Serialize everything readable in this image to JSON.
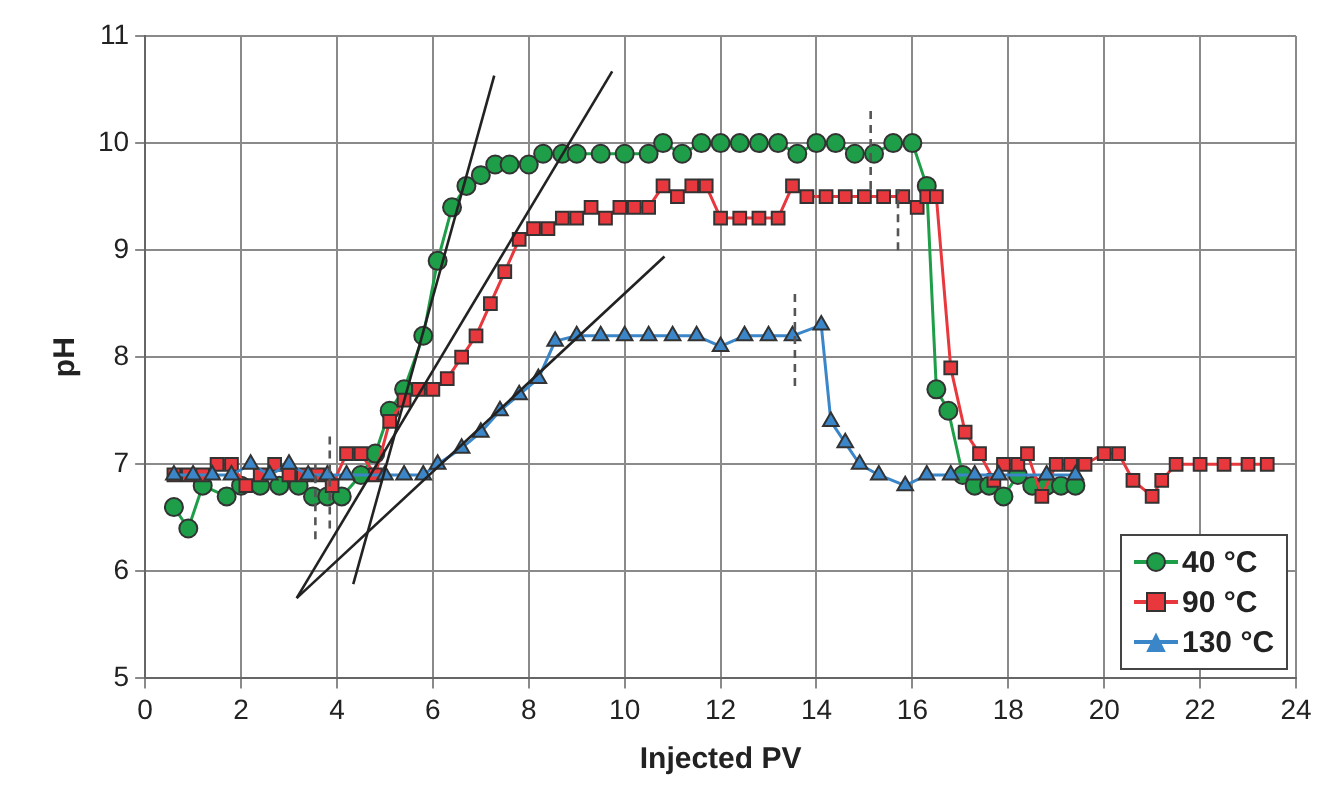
{
  "chart_data": {
    "type": "line",
    "xlabel": "Injected PV",
    "ylabel": "pH",
    "xlim": [
      0,
      24
    ],
    "xticks": [
      0,
      2,
      4,
      6,
      8,
      10,
      12,
      14,
      16,
      18,
      20,
      22,
      24
    ],
    "ylim": [
      5,
      11
    ],
    "yticks": [
      5,
      6,
      7,
      8,
      9,
      10,
      11
    ],
    "grid": true,
    "legend": "bottom right",
    "line_style": "solid",
    "series": [
      {
        "name": "40 °C",
        "color": "#1e9e48",
        "marker": "circle",
        "x": [
          0.6,
          0.9,
          1.2,
          1.7,
          2.0,
          2.4,
          2.8,
          3.2,
          3.5,
          3.8,
          4.1,
          4.5,
          4.8,
          5.1,
          5.4,
          5.8,
          6.1,
          6.4,
          6.7,
          7.0,
          7.3,
          7.6,
          8.0,
          8.3,
          8.7,
          9.0,
          9.5,
          10.0,
          10.5,
          10.8,
          11.2,
          11.6,
          12.0,
          12.4,
          12.8,
          13.2,
          13.6,
          14.0,
          14.4,
          14.8,
          15.2,
          15.6,
          16.0,
          16.3,
          16.5,
          16.75,
          17.05,
          17.3,
          17.6,
          17.9,
          18.2,
          18.5,
          18.8,
          19.1,
          19.4
        ],
        "values": [
          6.6,
          6.4,
          6.8,
          6.7,
          6.8,
          6.8,
          6.8,
          6.8,
          6.7,
          6.7,
          6.7,
          6.9,
          7.1,
          7.5,
          7.7,
          8.2,
          8.9,
          9.4,
          9.6,
          9.7,
          9.8,
          9.8,
          9.8,
          9.9,
          9.9,
          9.9,
          9.9,
          9.9,
          9.9,
          10.0,
          9.9,
          10.0,
          10.0,
          10.0,
          10.0,
          10.0,
          9.9,
          10.0,
          10.0,
          9.9,
          9.9,
          10.0,
          10.0,
          9.6,
          7.7,
          7.5,
          6.9,
          6.8,
          6.8,
          6.7,
          6.9,
          6.8,
          6.8,
          6.8,
          6.8
        ]
      },
      {
        "name": "90 °C",
        "color": "#e8383d",
        "marker": "square",
        "x": [
          0.6,
          0.9,
          1.2,
          1.5,
          1.8,
          2.1,
          2.4,
          2.7,
          3.0,
          3.3,
          3.6,
          3.9,
          4.2,
          4.5,
          4.8,
          5.1,
          5.4,
          5.7,
          6.0,
          6.3,
          6.6,
          6.9,
          7.2,
          7.5,
          7.8,
          8.1,
          8.4,
          8.7,
          9.0,
          9.3,
          9.6,
          9.9,
          10.2,
          10.5,
          10.8,
          11.1,
          11.4,
          11.7,
          12.0,
          12.4,
          12.8,
          13.2,
          13.5,
          13.8,
          14.2,
          14.6,
          15.0,
          15.4,
          15.8,
          16.1,
          16.3,
          16.5,
          16.8,
          17.1,
          17.4,
          17.7,
          17.9,
          18.2,
          18.4,
          18.7,
          19.0,
          19.3,
          19.6,
          20.0,
          20.3,
          20.6,
          21.0,
          21.2,
          21.5,
          22.0,
          22.5,
          23.0,
          23.4
        ],
        "values": [
          6.9,
          6.9,
          6.9,
          7.0,
          7.0,
          6.8,
          6.9,
          7.0,
          6.9,
          6.9,
          6.9,
          6.8,
          7.1,
          7.1,
          6.9,
          7.4,
          7.6,
          7.7,
          7.7,
          7.8,
          8.0,
          8.2,
          8.5,
          8.8,
          9.1,
          9.2,
          9.2,
          9.3,
          9.3,
          9.4,
          9.3,
          9.4,
          9.4,
          9.4,
          9.6,
          9.5,
          9.6,
          9.6,
          9.3,
          9.3,
          9.3,
          9.3,
          9.6,
          9.5,
          9.5,
          9.5,
          9.5,
          9.5,
          9.5,
          9.4,
          9.5,
          9.5,
          7.9,
          7.3,
          7.1,
          6.85,
          7.0,
          7.0,
          7.1,
          6.7,
          7.0,
          7.0,
          7.0,
          7.1,
          7.1,
          6.85,
          6.7,
          6.85,
          7.0,
          7.0,
          7.0,
          7.0,
          7.0
        ]
      },
      {
        "name": "130 °C",
        "color": "#3a86c8",
        "marker": "triangle",
        "x": [
          0.6,
          1.0,
          1.4,
          1.8,
          2.2,
          2.6,
          3.0,
          3.4,
          3.8,
          4.2,
          5.0,
          5.4,
          5.8,
          6.1,
          6.6,
          7.0,
          7.4,
          7.8,
          8.2,
          8.55,
          9.0,
          9.5,
          10.0,
          10.5,
          11.0,
          11.5,
          12.0,
          12.5,
          13.0,
          13.5,
          14.1,
          14.3,
          14.6,
          14.9,
          15.3,
          15.85,
          16.3,
          16.8,
          17.3,
          17.8,
          18.8,
          19.4
        ],
        "values": [
          6.9,
          6.9,
          6.9,
          6.9,
          7.0,
          6.9,
          7.0,
          6.9,
          6.9,
          6.9,
          6.9,
          6.9,
          6.9,
          7.0,
          7.15,
          7.3,
          7.5,
          7.65,
          7.8,
          8.15,
          8.2,
          8.2,
          8.2,
          8.2,
          8.2,
          8.2,
          8.1,
          8.2,
          8.2,
          8.2,
          8.3,
          7.4,
          7.2,
          7.0,
          6.9,
          6.8,
          6.9,
          6.9,
          6.9,
          6.9,
          6.9,
          6.9
        ]
      },
      {
        "color": "#222222",
        "marker": "none",
        "x": [
          4.34,
          7.28
        ],
        "values": [
          5.88,
          10.63
        ]
      },
      {
        "color": "#222222",
        "marker": "none",
        "x": [
          3.16,
          9.74
        ],
        "values": [
          5.75,
          10.67
        ]
      },
      {
        "color": "#222222",
        "marker": "none",
        "x": [
          3.16,
          10.83
        ],
        "values": [
          5.75,
          8.94
        ]
      },
      {
        "color": "#555555",
        "marker": "none",
        "line_style": "dashed",
        "x": [
          3.55,
          3.55
        ],
        "values": [
          6.3,
          7.0
        ]
      },
      {
        "color": "#555555",
        "marker": "none",
        "line_style": "dashed",
        "x": [
          3.85,
          3.85
        ],
        "values": [
          6.4,
          7.3
        ]
      },
      {
        "color": "#555555",
        "marker": "none",
        "line_style": "dashed",
        "x": [
          15.13,
          15.13
        ],
        "values": [
          9.57,
          10.35
        ]
      },
      {
        "color": "#555555",
        "marker": "none",
        "line_style": "dashed",
        "x": [
          15.7,
          15.7
        ],
        "values": [
          9.0,
          9.57
        ]
      },
      {
        "color": "#555555",
        "marker": "none",
        "line_style": "dashed",
        "x": [
          13.55,
          13.55
        ],
        "values": [
          7.73,
          8.6
        ]
      }
    ]
  }
}
